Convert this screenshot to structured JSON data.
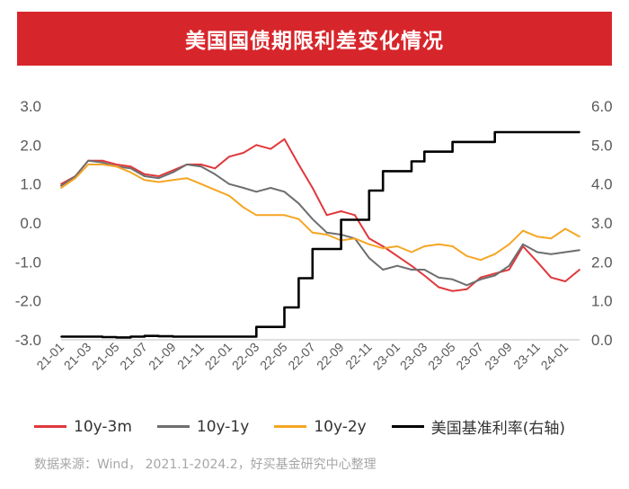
{
  "title": "美国国债期限利差变化情况",
  "source": "数据来源：Wind， 2021.1-2024.2，好买基金研究中心整理",
  "colors": {
    "banner": "#d7262b",
    "s3m": "#e0383c",
    "s1y": "#6e6e6e",
    "s2y": "#f5a623",
    "fed": "#000000"
  },
  "chart_data": {
    "type": "line",
    "title": "美国国债期限利差变化情况",
    "left_axis": {
      "min": -3,
      "max": 3,
      "ticks": [
        "3.0",
        "2.0",
        "1.0",
        "0.0",
        "-1.0",
        "-2.0",
        "-3.0"
      ]
    },
    "right_axis": {
      "min": 0,
      "max": 6,
      "ticks": [
        "6.0",
        "5.0",
        "4.0",
        "3.0",
        "2.0",
        "1.0",
        "0.0"
      ]
    },
    "x_labels": [
      "21-01",
      "21-03",
      "21-05",
      "21-07",
      "21-09",
      "21-11",
      "22-01",
      "22-03",
      "22-05",
      "22-07",
      "22-09",
      "22-11",
      "23-01",
      "23-03",
      "23-05",
      "23-07",
      "23-09",
      "23-11",
      "24-01"
    ],
    "x_months": [
      "2021-01",
      "2021-02",
      "2021-03",
      "2021-04",
      "2021-05",
      "2021-06",
      "2021-07",
      "2021-08",
      "2021-09",
      "2021-10",
      "2021-11",
      "2021-12",
      "2022-01",
      "2022-02",
      "2022-03",
      "2022-04",
      "2022-05",
      "2022-06",
      "2022-07",
      "2022-08",
      "2022-09",
      "2022-10",
      "2022-11",
      "2022-12",
      "2023-01",
      "2023-02",
      "2023-03",
      "2023-04",
      "2023-05",
      "2023-06",
      "2023-07",
      "2023-08",
      "2023-09",
      "2023-10",
      "2023-11",
      "2023-12",
      "2024-01",
      "2024-02"
    ],
    "grid": false,
    "legend_position": "bottom",
    "series": [
      {
        "name": "10y-3m",
        "axis": "left",
        "color": "#e0383c",
        "values": [
          1.0,
          1.2,
          1.6,
          1.6,
          1.5,
          1.45,
          1.25,
          1.2,
          1.35,
          1.5,
          1.5,
          1.4,
          1.7,
          1.8,
          2.0,
          1.9,
          2.15,
          1.5,
          0.9,
          0.2,
          0.3,
          0.2,
          -0.4,
          -0.6,
          -0.85,
          -1.1,
          -1.35,
          -1.65,
          -1.75,
          -1.7,
          -1.4,
          -1.3,
          -1.2,
          -0.6,
          -1.0,
          -1.4,
          -1.5,
          -1.2
        ]
      },
      {
        "name": "10y-1y",
        "axis": "left",
        "color": "#6e6e6e",
        "values": [
          0.95,
          1.2,
          1.6,
          1.55,
          1.45,
          1.4,
          1.2,
          1.15,
          1.3,
          1.5,
          1.45,
          1.25,
          1.0,
          0.9,
          0.8,
          0.9,
          0.8,
          0.5,
          0.1,
          -0.25,
          -0.3,
          -0.4,
          -0.9,
          -1.2,
          -1.1,
          -1.2,
          -1.2,
          -1.4,
          -1.45,
          -1.6,
          -1.45,
          -1.35,
          -1.1,
          -0.55,
          -0.75,
          -0.8,
          -0.75,
          -0.7
        ]
      },
      {
        "name": "10y-2y",
        "axis": "left",
        "color": "#f5a623",
        "values": [
          0.9,
          1.15,
          1.5,
          1.5,
          1.45,
          1.3,
          1.1,
          1.05,
          1.1,
          1.15,
          1.0,
          0.85,
          0.7,
          0.4,
          0.2,
          0.2,
          0.2,
          0.1,
          -0.25,
          -0.3,
          -0.45,
          -0.4,
          -0.55,
          -0.65,
          -0.6,
          -0.75,
          -0.6,
          -0.55,
          -0.6,
          -0.85,
          -0.95,
          -0.8,
          -0.55,
          -0.2,
          -0.35,
          -0.4,
          -0.15,
          -0.35
        ]
      },
      {
        "name": "美国基准利率(右轴)",
        "axis": "right",
        "color": "#000000",
        "step": true,
        "values": [
          0.08,
          0.08,
          0.08,
          0.07,
          0.06,
          0.08,
          0.1,
          0.09,
          0.08,
          0.08,
          0.08,
          0.08,
          0.08,
          0.08,
          0.33,
          0.33,
          0.83,
          1.58,
          2.33,
          2.33,
          3.08,
          3.08,
          3.83,
          4.33,
          4.33,
          4.58,
          4.83,
          4.83,
          5.08,
          5.08,
          5.08,
          5.33,
          5.33,
          5.33,
          5.33,
          5.33,
          5.33,
          5.33
        ]
      }
    ]
  }
}
